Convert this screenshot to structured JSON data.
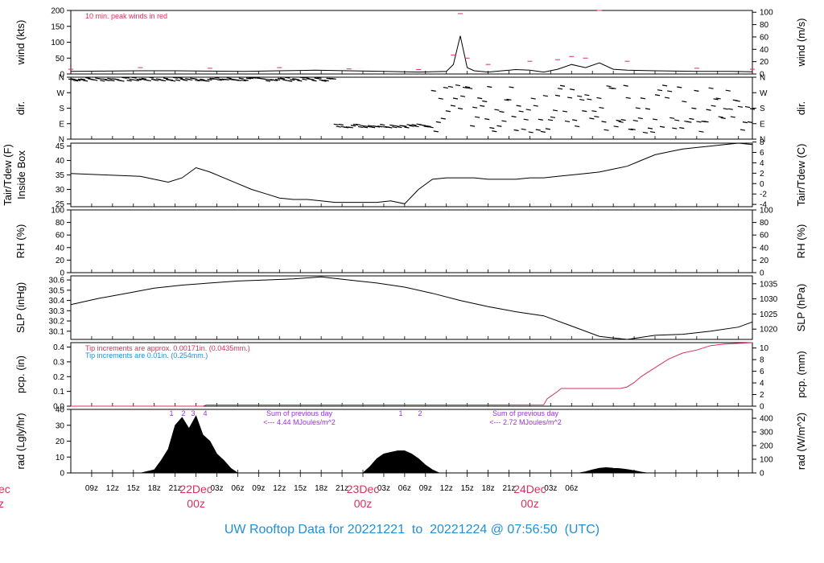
{
  "footer": {
    "title": "UW Rooftop Data for 20221221  to  20221224 @ 07:56:50  (UTC)"
  },
  "colors": {
    "footer": "#1f8fd6",
    "accent_red": "#d6315b",
    "note_purple": "#9b30d9",
    "note_blue": "#1f8fd6",
    "trace": "#000000"
  },
  "x_axis": {
    "hour_labels": [
      "09z",
      "12z",
      "15z",
      "18z",
      "21z",
      "03z",
      "06z",
      "09z",
      "12z",
      "15z",
      "18z",
      "21z",
      "03z",
      "06z",
      "09z",
      "12z",
      "15z",
      "18z",
      "21z",
      "03z",
      "06z"
    ],
    "date_labels": [
      {
        "date": "22Dec",
        "time": "00z"
      },
      {
        "date": "23Dec",
        "time": "00z"
      },
      {
        "date": "24Dec",
        "time": "00z"
      }
    ],
    "clipped_left_labels": [
      "ec",
      "z"
    ]
  },
  "panels": {
    "wind": {
      "left_title": "wind (kts)",
      "right_title": "wind (m/s)",
      "left_ticks": [
        "0",
        "50",
        "100",
        "150",
        "200"
      ],
      "right_ticks": [
        "0",
        "20",
        "40",
        "60",
        "80",
        "100"
      ],
      "note": "10 min. peak winds in red"
    },
    "dir": {
      "left_title": "dir.",
      "right_title": "dir.",
      "left_ticks": [
        "N",
        "E",
        "S",
        "W",
        "N"
      ],
      "right_ticks": [
        "N",
        "E",
        "S",
        "W",
        "N"
      ]
    },
    "temp": {
      "left_title": "Tair/Tdew (F)",
      "left_title2": "Inside Box",
      "right_title": "Tair/Tdew (C)",
      "left_ticks": [
        "25",
        "30",
        "35",
        "40",
        "45"
      ],
      "right_ticks": [
        "-4",
        "-2",
        "0",
        "2",
        "4",
        "6",
        "8"
      ]
    },
    "rh": {
      "left_title": "RH (%)",
      "right_title": "RH (%)",
      "left_ticks": [
        "0",
        "20",
        "40",
        "60",
        "80",
        "100"
      ],
      "right_ticks": [
        "0",
        "20",
        "40",
        "60",
        "80",
        "100"
      ]
    },
    "slp": {
      "left_title": "SLP (inHg)",
      "right_title": "SLP (hPa)",
      "left_ticks": [
        "30.1",
        "30.2",
        "30.3",
        "30.4",
        "30.5",
        "30.6"
      ],
      "right_ticks": [
        "1020",
        "1025",
        "1030",
        "1035"
      ]
    },
    "pcp": {
      "left_title": "pcp. (in)",
      "right_title": "pcp. (mm)",
      "left_ticks": [
        "0.0",
        "0.1",
        "0.2",
        "0.3",
        "0.4"
      ],
      "right_ticks": [
        "0",
        "2",
        "4",
        "6",
        "8",
        "10"
      ],
      "note1": "Tip increments are approx. 0.00171in. (0.0435mm.)",
      "note2": "Tip increments are 0.01in. (0.254mm.)"
    },
    "rad": {
      "left_title": "rad (Lgly/hr)",
      "right_title": "rad (W/m^2)",
      "left_ticks": [
        "0",
        "10",
        "20",
        "30",
        "40"
      ],
      "right_ticks": [
        "0",
        "100",
        "200",
        "300",
        "400"
      ],
      "sum1": "Sum of previous day",
      "sum1_val": "<--- 4.44 MJoules/m^2",
      "sum2": "Sum of previous day",
      "sum2_val": "<--- 2.72 MJoules/m^2",
      "markers": [
        "1",
        "2",
        "3",
        "4",
        "1",
        "2"
      ]
    }
  },
  "chart_data": {
    "type": "line",
    "x_units": "hours since 20221221 06z (UTC)",
    "x_range": [
      0,
      98
    ],
    "series": [
      {
        "panel": "wind",
        "name": "wind",
        "units": "kts",
        "x": [
          0,
          5,
          10,
          15,
          20,
          25,
          30,
          35,
          40,
          45,
          50,
          54,
          55,
          56,
          57,
          58,
          60,
          62,
          64,
          66,
          68,
          70,
          72,
          74,
          76,
          78,
          80,
          84,
          90,
          95,
          98
        ],
        "y": [
          8,
          9,
          10,
          10,
          9,
          8,
          10,
          12,
          10,
          8,
          6,
          8,
          30,
          120,
          20,
          10,
          6,
          10,
          14,
          12,
          6,
          15,
          30,
          20,
          35,
          15,
          12,
          10,
          8,
          8,
          7
        ]
      },
      {
        "panel": "wind",
        "name": "10 min. peak winds",
        "units": "kts",
        "x": [
          0,
          10,
          20,
          30,
          40,
          50,
          55,
          56,
          57,
          60,
          66,
          70,
          72,
          74,
          76,
          80,
          90,
          98
        ],
        "y": [
          15,
          20,
          18,
          20,
          16,
          14,
          60,
          190,
          50,
          30,
          40,
          45,
          55,
          50,
          200,
          40,
          18,
          15
        ]
      },
      {
        "panel": "temp",
        "name": "Tair",
        "units": "F",
        "x": [
          0,
          5,
          10,
          12,
          14,
          16,
          18,
          20,
          22,
          24,
          26,
          28,
          30,
          32,
          34,
          36,
          38,
          40,
          42,
          44,
          46,
          48,
          50,
          52,
          54,
          56,
          58,
          60,
          62,
          64,
          66,
          68,
          70,
          72,
          74,
          76,
          78,
          80,
          82,
          84,
          86,
          88,
          90,
          92,
          94,
          96,
          98
        ],
        "y": [
          35.5,
          35,
          34.5,
          33.5,
          32.5,
          34,
          37.5,
          36,
          34,
          32,
          30,
          28.5,
          27,
          26.5,
          26.5,
          26,
          25.5,
          25.5,
          25.5,
          25.5,
          26,
          25,
          30,
          33.5,
          34,
          34,
          34,
          33.5,
          33.5,
          33.5,
          34,
          34,
          34.5,
          35,
          35.5,
          36,
          37,
          38,
          40,
          42,
          43,
          44,
          44.5,
          45,
          45.5,
          46,
          45.5
        ]
      },
      {
        "panel": "slp",
        "name": "SLP",
        "units": "inHg",
        "x": [
          0,
          4,
          8,
          12,
          16,
          20,
          24,
          28,
          32,
          36,
          40,
          44,
          48,
          52,
          56,
          60,
          64,
          68,
          72,
          76,
          80,
          84,
          88,
          92,
          96,
          98
        ],
        "y": [
          30.36,
          30.42,
          30.47,
          30.52,
          30.55,
          30.57,
          30.59,
          30.6,
          30.61,
          30.63,
          30.6,
          30.57,
          30.53,
          30.47,
          30.4,
          30.34,
          30.29,
          30.25,
          30.15,
          30.05,
          30.02,
          30.06,
          30.07,
          30.1,
          30.14,
          30.19
        ]
      },
      {
        "panel": "pcp",
        "name": "precip",
        "units": "in",
        "x": [
          0,
          19,
          19.5,
          60,
          68,
          68.5,
          70,
          70.5,
          76,
          77,
          78,
          79,
          80,
          81,
          82,
          84,
          86,
          88,
          90,
          92,
          94,
          98
        ],
        "y": [
          0,
          0,
          0.008,
          0.008,
          0.01,
          0.05,
          0.1,
          0.12,
          0.12,
          0.12,
          0.12,
          0.12,
          0.13,
          0.16,
          0.2,
          0.26,
          0.32,
          0.36,
          0.38,
          0.41,
          0.42,
          0.43
        ]
      },
      {
        "panel": "rad",
        "name": "solar radiation",
        "units": "Lgly/hr",
        "x": [
          10,
          12,
          13,
          14,
          15,
          16,
          17,
          18,
          19,
          20,
          21,
          22,
          23,
          24,
          42,
          43,
          44,
          45,
          46,
          47,
          48,
          49,
          50,
          51,
          52,
          53,
          73,
          74,
          75,
          76,
          77,
          78,
          79,
          80,
          81,
          82,
          83
        ],
        "y": [
          0,
          2,
          8,
          15,
          30,
          35,
          28,
          36,
          24,
          20,
          12,
          8,
          3,
          0,
          0,
          4,
          9,
          12,
          13,
          14,
          14,
          12,
          9,
          5,
          2,
          0,
          0,
          0.8,
          2,
          3,
          3.4,
          3,
          2.8,
          2.2,
          1.5,
          0.6,
          0
        ]
      }
    ]
  }
}
